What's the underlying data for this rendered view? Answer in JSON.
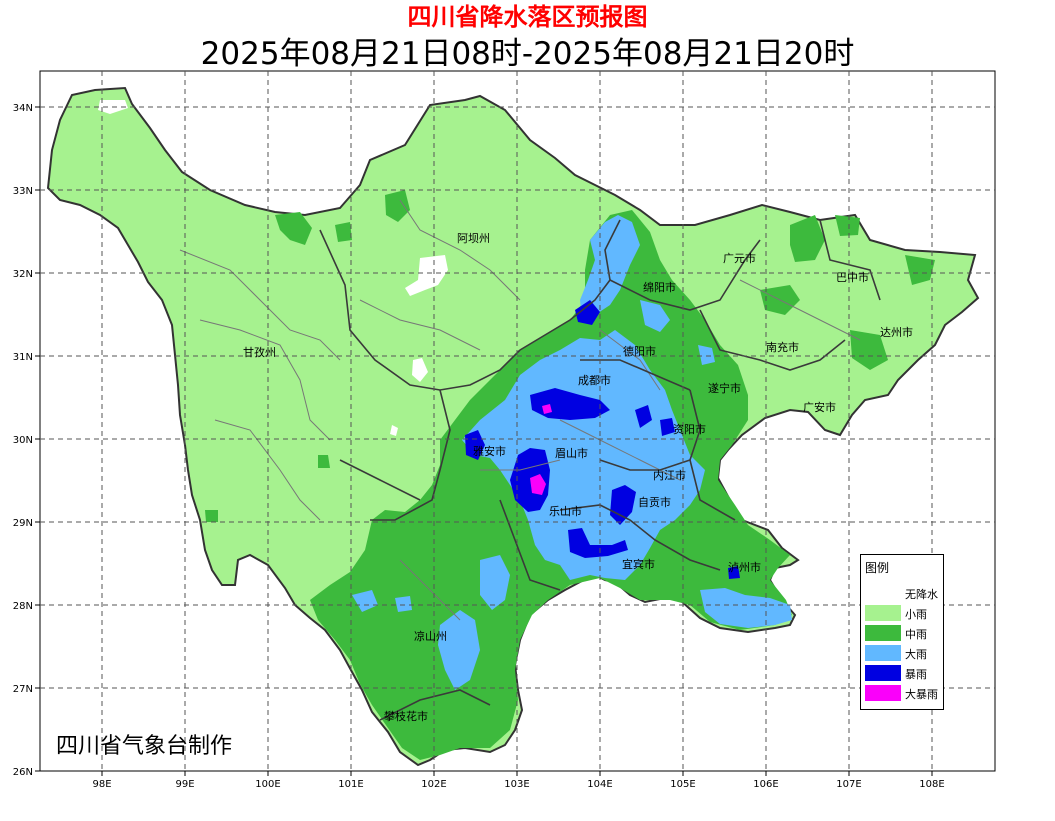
{
  "title": "四川省降水落区预报图",
  "subtitle": "2025年08月21日08时-2025年08月21日20时",
  "credit": "四川省气象台制作",
  "colors": {
    "title": "#ff0000",
    "none": "#ffffff",
    "light": "#a6f28f",
    "moderate": "#3dba3d",
    "heavy": "#61b8ff",
    "rainstorm": "#0000e1",
    "heavy_rainstorm": "#fa00fa"
  },
  "legend": {
    "title": "图例",
    "items": [
      {
        "label": "无降水",
        "color": "#ffffff"
      },
      {
        "label": "小雨",
        "color": "#a6f28f"
      },
      {
        "label": "中雨",
        "color": "#3dba3d"
      },
      {
        "label": "大雨",
        "color": "#61b8ff"
      },
      {
        "label": "暴雨",
        "color": "#0000e1"
      },
      {
        "label": "大暴雨",
        "color": "#fa00fa"
      }
    ]
  },
  "axes": {
    "lon_labels": [
      "98E",
      "99E",
      "100E",
      "101E",
      "102E",
      "103E",
      "104E",
      "105E",
      "106E",
      "107E",
      "108E"
    ],
    "lat_labels": [
      "34N",
      "33N",
      "32N",
      "31N",
      "30N",
      "29N",
      "28N",
      "27N",
      "26N"
    ]
  },
  "cities": [
    {
      "name": "阿坝州"
    },
    {
      "name": "甘孜州"
    },
    {
      "name": "广元市"
    },
    {
      "name": "巴中市"
    },
    {
      "name": "绵阳市"
    },
    {
      "name": "达州市"
    },
    {
      "name": "南充市"
    },
    {
      "name": "德阳市"
    },
    {
      "name": "成都市"
    },
    {
      "name": "遂宁市"
    },
    {
      "name": "广安市"
    },
    {
      "name": "资阳市"
    },
    {
      "name": "雅安市"
    },
    {
      "name": "眉山市"
    },
    {
      "name": "内江市"
    },
    {
      "name": "乐山市"
    },
    {
      "name": "自贡市"
    },
    {
      "name": "宜宾市"
    },
    {
      "name": "泸州市"
    },
    {
      "name": "凉山州"
    },
    {
      "name": "攀枝花市"
    }
  ]
}
